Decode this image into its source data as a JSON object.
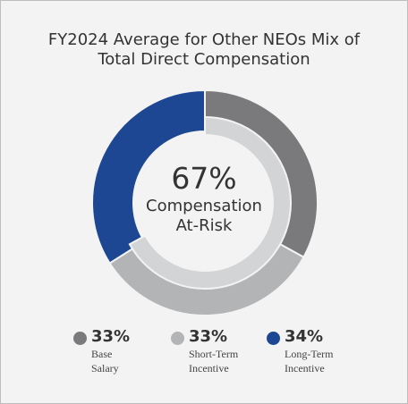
{
  "chart_data": {
    "type": "pie",
    "title": "FY2024 Average for Other NEOs Mix of\nTotal Direct Compensation",
    "center": {
      "value": "67%",
      "label_line1": "Compensation",
      "label_line2": "At-Risk"
    },
    "outer_ring": {
      "categories": [
        "Base Salary",
        "Short-Term Incentive",
        "Long-Term Incentive"
      ],
      "values": [
        33,
        33,
        34
      ]
    },
    "inner_ring": {
      "categories": [
        "Compensation At-Risk"
      ],
      "values": [
        67
      ]
    },
    "legend": [
      {
        "pct": "33%",
        "line1": "Base",
        "line2": "Salary",
        "color": "#7a7a7c"
      },
      {
        "pct": "33%",
        "line1": "Short-Term",
        "line2": "Incentive",
        "color": "#b3b4b6"
      },
      {
        "pct": "34%",
        "line1": "Long-Term",
        "line2": "Incentive",
        "color": "#1d4793"
      }
    ],
    "colors": {
      "base_salary": "#7a7a7c",
      "short_term": "#b3b4b6",
      "long_term": "#1d4793",
      "inner_at_risk": "#d3d4d6"
    }
  }
}
